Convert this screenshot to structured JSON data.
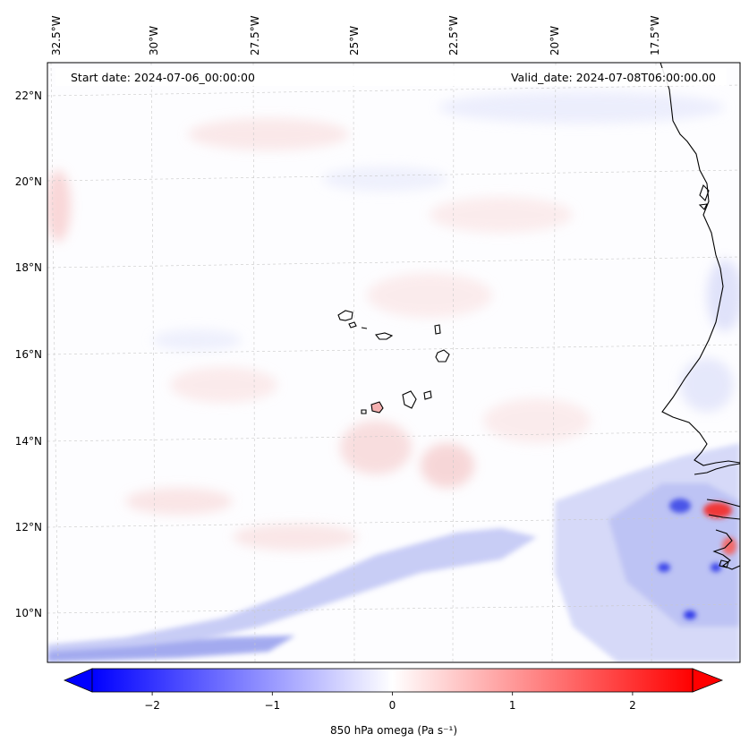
{
  "map": {
    "start_label": "Start date: 2024-07-06_00:00:00",
    "valid_label": "Valid_date: 2024-07-08T06:00:00.00",
    "lon_ticks": [
      "32.5°W",
      "30°W",
      "27.5°W",
      "25°W",
      "22.5°W",
      "20°W",
      "17.5°W"
    ],
    "lat_ticks": [
      "22°N",
      "20°N",
      "18°N",
      "16°N",
      "14°N",
      "12°N",
      "10°N"
    ],
    "colorbar": {
      "label": "850 hPa omega (Pa s⁻¹)",
      "ticks": [
        "−2",
        "−1",
        "0",
        "1",
        "2"
      ],
      "tick_values": [
        -2,
        -1,
        0,
        1,
        2
      ],
      "range": [
        -2.5,
        2.5
      ],
      "colors": {
        "negative": "#0000ff",
        "zero": "#ffffff",
        "positive": "#ff0000"
      }
    }
  }
}
